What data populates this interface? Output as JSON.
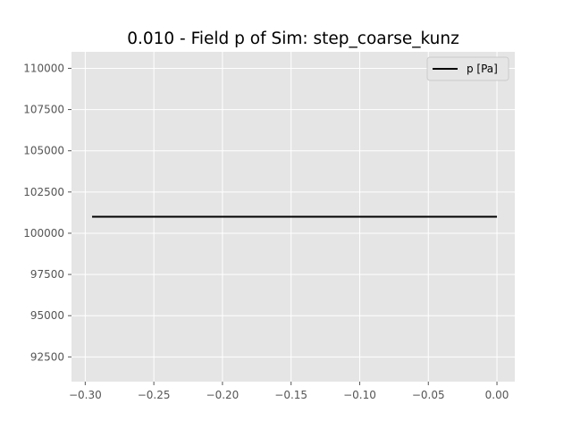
{
  "chart_data": {
    "type": "line",
    "title": "0.010 - Field p of Sim: step_coarse_kunz",
    "xlabel": "",
    "ylabel": "",
    "xlim": [
      -0.31,
      0.013
    ],
    "ylim": [
      91000,
      111000
    ],
    "x_ticks": [
      -0.3,
      -0.25,
      -0.2,
      -0.15,
      -0.1,
      -0.05,
      0.0
    ],
    "x_tick_labels": [
      "−0.30",
      "−0.25",
      "−0.20",
      "−0.15",
      "−0.10",
      "−0.05",
      "0.00"
    ],
    "y_ticks": [
      92500,
      95000,
      97500,
      100000,
      102500,
      105000,
      107500,
      110000
    ],
    "y_tick_labels": [
      "92500",
      "95000",
      "97500",
      "100000",
      "102500",
      "105000",
      "107500",
      "110000"
    ],
    "grid": true,
    "legend_position": "top-right",
    "series": [
      {
        "name": "p [Pa]",
        "color": "#000000",
        "x": [
          -0.295,
          0.0
        ],
        "y": [
          101000,
          101000
        ]
      }
    ],
    "style": {
      "axes_background": "#e5e5e5",
      "grid_color": "#ffffff",
      "tick_color": "#555555"
    }
  }
}
